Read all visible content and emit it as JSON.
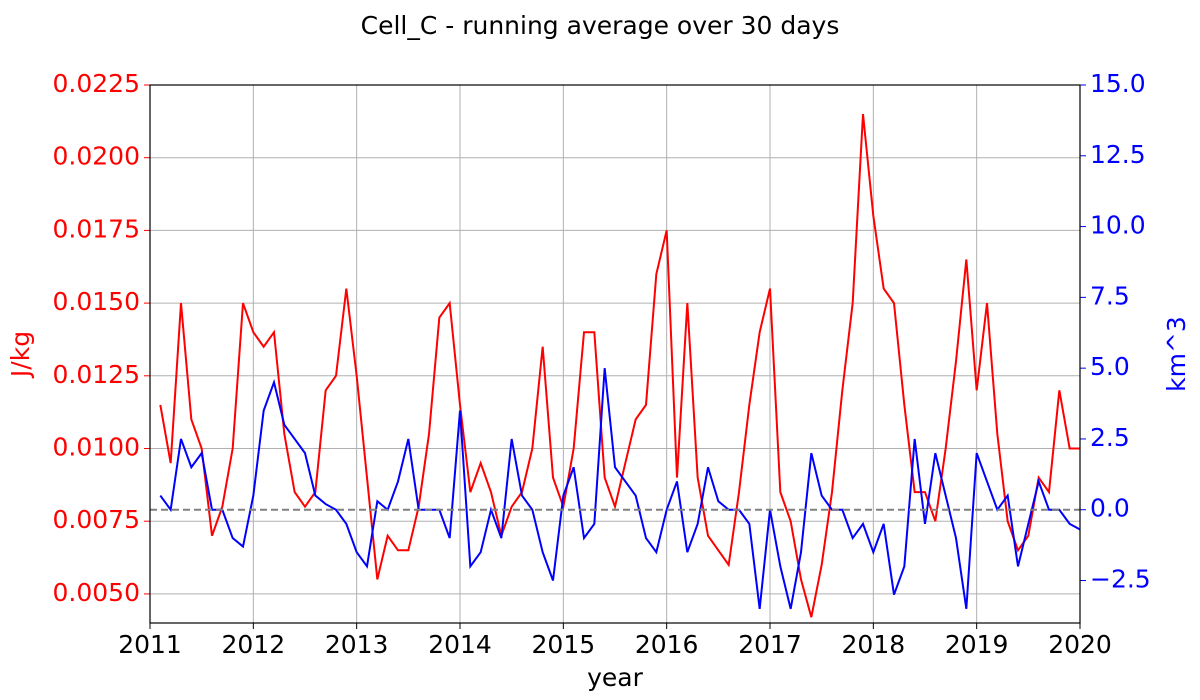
{
  "chart_data": {
    "type": "line",
    "title": "Cell_C - running average over 30 days",
    "xlabel": "year",
    "ylabel": "J/kg",
    "y2label": "km^3",
    "ylabel_color": "#ff0000",
    "y2label_color": "#0000ff",
    "xlim": [
      2011,
      2020
    ],
    "xticks": [
      2011,
      2012,
      2013,
      2014,
      2015,
      2016,
      2017,
      2018,
      2019,
      2020
    ],
    "ylim": [
      0.004,
      0.0225
    ],
    "yticks": [
      {
        "value": 0.005,
        "label": "0.0050"
      },
      0.0075,
      {
        "value": 0.01,
        "label": "0.0100"
      },
      0.0125,
      {
        "value": 0.015,
        "label": "0.0150"
      },
      0.0175,
      {
        "value": 0.02,
        "label": "0.0200"
      },
      0.0225
    ],
    "y2lim": [
      -4,
      15
    ],
    "y2ticks": [
      {
        "value": -2.5,
        "label": "−2.5"
      },
      {
        "value": 0,
        "label": "0.0"
      },
      2.5,
      {
        "value": 5,
        "label": "5.0"
      },
      7.5,
      {
        "value": 10,
        "label": "10.0"
      },
      12.5,
      {
        "value": 15,
        "label": "15.0"
      }
    ],
    "grid": true,
    "reference_line": {
      "value": 0,
      "axis": "y2",
      "color": "#808080"
    },
    "x": [
      2011.1,
      2011.2,
      2011.3,
      2011.4,
      2011.5,
      2011.6,
      2011.7,
      2011.8,
      2011.9,
      2012.0,
      2012.1,
      2012.2,
      2012.3,
      2012.4,
      2012.5,
      2012.6,
      2012.7,
      2012.8,
      2012.9,
      2013.0,
      2013.1,
      2013.2,
      2013.3,
      2013.4,
      2013.5,
      2013.6,
      2013.7,
      2013.8,
      2013.9,
      2014.0,
      2014.1,
      2014.2,
      2014.3,
      2014.4,
      2014.5,
      2014.6,
      2014.7,
      2014.8,
      2014.9,
      2015.0,
      2015.1,
      2015.2,
      2015.3,
      2015.4,
      2015.5,
      2015.6,
      2015.7,
      2015.8,
      2015.9,
      2016.0,
      2016.1,
      2016.2,
      2016.3,
      2016.4,
      2016.5,
      2016.6,
      2016.7,
      2016.8,
      2016.9,
      2017.0,
      2017.1,
      2017.2,
      2017.3,
      2017.4,
      2017.5,
      2017.6,
      2017.7,
      2017.8,
      2017.9,
      2018.0,
      2018.1,
      2018.2,
      2018.3,
      2018.4,
      2018.5,
      2018.6,
      2018.7,
      2018.8,
      2018.9,
      2019.0,
      2019.1,
      2019.2,
      2019.3,
      2019.4,
      2019.5,
      2019.6,
      2019.7,
      2019.8,
      2019.9,
      2020.0
    ],
    "series": [
      {
        "name": "J/kg",
        "color": "#ff0000",
        "axis": "y",
        "values": [
          0.0115,
          0.0095,
          0.015,
          0.011,
          0.01,
          0.007,
          0.008,
          0.01,
          0.015,
          0.014,
          0.0135,
          0.014,
          0.0105,
          0.0085,
          0.008,
          0.0085,
          0.012,
          0.0125,
          0.0155,
          0.0125,
          0.009,
          0.0055,
          0.007,
          0.0065,
          0.0065,
          0.008,
          0.0105,
          0.0145,
          0.015,
          0.0115,
          0.0085,
          0.0095,
          0.0085,
          0.007,
          0.008,
          0.0085,
          0.01,
          0.0135,
          0.009,
          0.008,
          0.01,
          0.014,
          0.014,
          0.009,
          0.008,
          0.0095,
          0.011,
          0.0115,
          0.016,
          0.0175,
          0.009,
          0.015,
          0.009,
          0.007,
          0.0065,
          0.006,
          0.0085,
          0.0115,
          0.014,
          0.0155,
          0.0085,
          0.0075,
          0.0055,
          0.0042,
          0.006,
          0.0085,
          0.012,
          0.015,
          0.0215,
          0.018,
          0.0155,
          0.015,
          0.0115,
          0.0085,
          0.0085,
          0.0075,
          0.01,
          0.013,
          0.0165,
          0.012,
          0.015,
          0.0105,
          0.0075,
          0.0065,
          0.007,
          0.009,
          0.0085,
          0.012,
          0.01,
          0.01
        ]
      },
      {
        "name": "km^3",
        "color": "#0000ff",
        "axis": "y2",
        "values": [
          0.5,
          0,
          2.5,
          1.5,
          2,
          0,
          0,
          -1,
          -1.3,
          0.5,
          3.5,
          4.5,
          3,
          2.5,
          2,
          0.5,
          0.2,
          0,
          -0.5,
          -1.5,
          -2,
          0.3,
          0,
          1,
          2.5,
          0,
          0,
          0,
          -1,
          3.5,
          -2,
          -1.5,
          0,
          -1,
          2.5,
          0.5,
          0,
          -1.5,
          -2.5,
          0.5,
          1.5,
          -1,
          -0.5,
          5,
          1.5,
          1,
          0.5,
          -1,
          -1.5,
          0,
          1,
          -1.5,
          -0.5,
          1.5,
          0.3,
          0,
          0,
          -0.5,
          -3.5,
          0,
          -2,
          -3.5,
          -1.5,
          2,
          0.5,
          0,
          0,
          -1,
          -0.5,
          -1.5,
          -0.5,
          -3,
          -2,
          2.5,
          -0.5,
          2,
          0.5,
          -1,
          -3.5,
          2,
          1,
          0,
          0.5,
          -2,
          -0.5,
          1,
          0,
          0,
          -0.5,
          -0.7
        ]
      }
    ]
  }
}
